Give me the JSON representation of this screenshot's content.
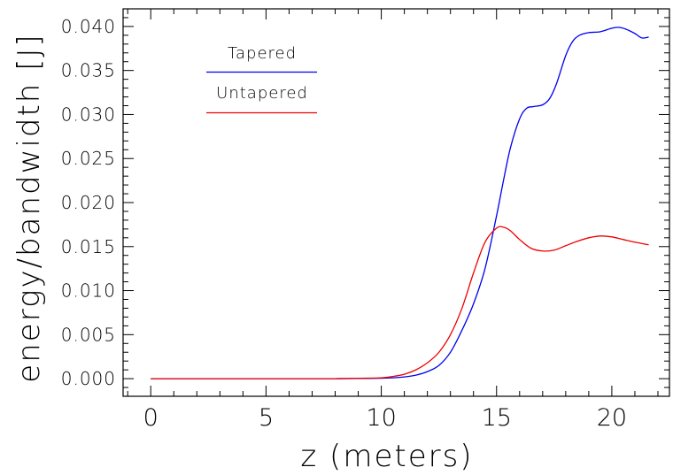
{
  "chart_data": {
    "type": "line",
    "title": "",
    "xlabel": "z  (meters)",
    "ylabel": "energy/bandwidth  [J]",
    "xlim": [
      -1.2,
      22.5
    ],
    "ylim": [
      -0.002,
      0.042
    ],
    "x_ticks": [
      0,
      5,
      10,
      15,
      20
    ],
    "x_tick_labels": [
      "0",
      "5",
      "10",
      "15",
      "20"
    ],
    "y_ticks": [
      0.0,
      0.005,
      0.01,
      0.015,
      0.02,
      0.025,
      0.03,
      0.035,
      0.04
    ],
    "y_tick_labels": [
      "0.000",
      "0.005",
      "0.010",
      "0.015",
      "0.020",
      "0.025",
      "0.030",
      "0.035",
      "0.040"
    ],
    "x_minor_step": 1,
    "y_minor_step": 0.001,
    "grid": false,
    "legend_position": "top-left",
    "series": [
      {
        "name": "Tapered",
        "color": "#0000ee",
        "x": [
          0,
          2,
          4,
          6,
          8,
          9,
          10,
          10.5,
          11,
          11.5,
          12,
          12.5,
          13,
          13.5,
          14,
          14.5,
          15,
          15.3,
          15.6,
          16,
          16.3,
          16.6,
          17,
          17.3,
          17.6,
          18,
          18.3,
          18.6,
          19,
          19.5,
          20,
          20.3,
          20.6,
          21,
          21.3,
          21.6
        ],
        "y": [
          0,
          0,
          0,
          0,
          0,
          2e-05,
          5e-05,
          0.0001,
          0.0002,
          0.0004,
          0.0008,
          0.0015,
          0.003,
          0.0055,
          0.0085,
          0.0125,
          0.0185,
          0.0225,
          0.0262,
          0.0295,
          0.0307,
          0.0309,
          0.0311,
          0.0318,
          0.0335,
          0.0367,
          0.0383,
          0.039,
          0.0393,
          0.0394,
          0.0398,
          0.0399,
          0.0397,
          0.0392,
          0.0387,
          0.0388
        ]
      },
      {
        "name": "Untapered",
        "color": "#ee0000",
        "x": [
          0,
          2,
          4,
          6,
          8,
          9,
          10,
          10.5,
          11,
          11.5,
          12,
          12.5,
          13,
          13.5,
          14,
          14.5,
          15,
          15.3,
          15.6,
          16,
          16.5,
          17,
          17.5,
          18,
          18.5,
          19,
          19.5,
          20,
          20.5,
          21,
          21.6
        ],
        "y": [
          0,
          0,
          0,
          0,
          0,
          5e-05,
          0.0001,
          0.00025,
          0.0005,
          0.001,
          0.0018,
          0.003,
          0.005,
          0.008,
          0.012,
          0.0155,
          0.0171,
          0.0172,
          0.0168,
          0.0158,
          0.0148,
          0.0145,
          0.0146,
          0.0151,
          0.0156,
          0.016,
          0.0162,
          0.0161,
          0.0158,
          0.0155,
          0.0152
        ]
      }
    ]
  }
}
